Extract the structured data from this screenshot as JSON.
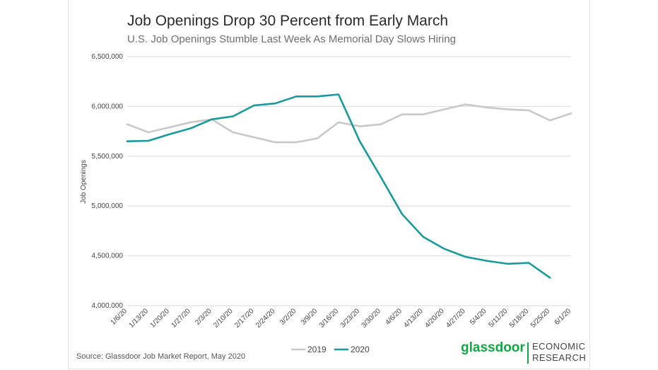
{
  "chart_data": {
    "type": "line",
    "title": "Job Openings Drop 30 Percent from Early March",
    "subtitle": "U.S. Job Openings Stumble Last Week As Memorial Day Slows Hiring",
    "ylabel": "Job Openings",
    "xlabel": "",
    "ylim": [
      4000000,
      6500000
    ],
    "yticks": [
      4000000,
      4500000,
      5000000,
      5500000,
      6000000,
      6500000
    ],
    "ytick_labels": [
      "4,000,000",
      "4,500,000",
      "5,000,000",
      "5,500,000",
      "6,000,000",
      "6,500,000"
    ],
    "categories": [
      "1/6/20",
      "1/13/20",
      "1/20/20",
      "1/27/20",
      "2/3/20",
      "2/10/20",
      "2/17/20",
      "2/24/20",
      "3/2/20",
      "3/9/20",
      "3/16/20",
      "3/23/20",
      "3/30/20",
      "4/6/20",
      "4/13/20",
      "4/20/20",
      "4/27/20",
      "5/4/20",
      "5/11/20",
      "5/18/20",
      "5/25/20",
      "6/1/20"
    ],
    "series": [
      {
        "name": "2019",
        "color": "#c8c8c8",
        "values": [
          5820000,
          5740000,
          5790000,
          5840000,
          5870000,
          5740000,
          5690000,
          5640000,
          5640000,
          5680000,
          5840000,
          5800000,
          5820000,
          5920000,
          5920000,
          5970000,
          6020000,
          5990000,
          5970000,
          5960000,
          5860000,
          5930000
        ]
      },
      {
        "name": "2020",
        "color": "#169a9c",
        "values": [
          5650000,
          5655000,
          5720000,
          5780000,
          5870000,
          5900000,
          6010000,
          6030000,
          6100000,
          6100000,
          6120000,
          5650000,
          5290000,
          4920000,
          4690000,
          4570000,
          4490000,
          4450000,
          4420000,
          4430000,
          4280000,
          null
        ]
      }
    ],
    "grid": true,
    "legend_position": "bottom-center",
    "source": "Source: Glassdoor Job Market Report, May 2020"
  },
  "logo": {
    "brand": "glassdoor",
    "brand_color": "#0caa41",
    "unit_line1": "ECONOMIC",
    "unit_line2": "RESEARCH"
  }
}
